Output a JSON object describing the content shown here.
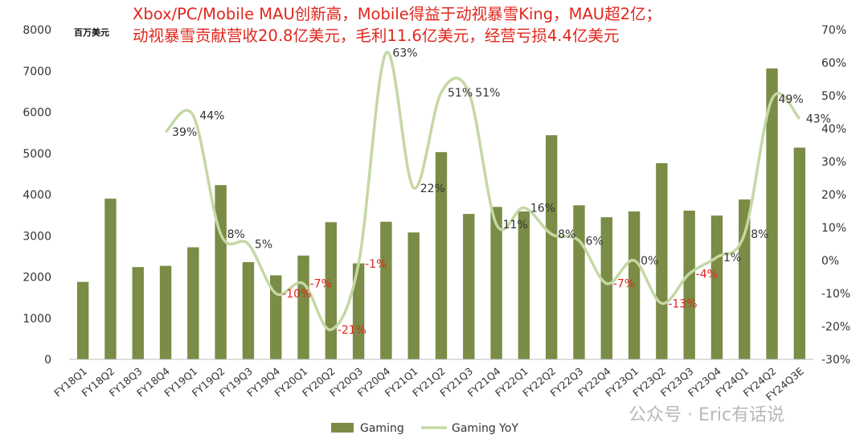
{
  "header": {
    "title_line1": "Xbox/PC/Mobile MAU创新高，Mobile得益于动视暴雪King，MAU超2亿；",
    "title_line2": "动视暴雪贡献营收20.8亿美元，毛利11.6亿美元，经营亏损4.4亿美元",
    "unit_label": "百万美元"
  },
  "watermark": "公众号 · Eric有话说",
  "colors": {
    "bar": "#7a8c45",
    "line": "#c5d8a4",
    "negative_label": "#e0261c",
    "title": "#e0261c"
  },
  "chart_data": {
    "type": "bar+line",
    "categories": [
      "FY18Q1",
      "FY18Q2",
      "FY18Q3",
      "FY18Q4",
      "FY19Q1",
      "FY19Q2",
      "FY19Q3",
      "FY19Q4",
      "FY20Q1",
      "FY20Q2",
      "FY20Q3",
      "FY20Q4",
      "FY21Q1",
      "FY21Q2",
      "FY21Q3",
      "FY21Q4",
      "FY22Q1",
      "FY22Q2",
      "FY22Q3",
      "FY22Q4",
      "FY23Q1",
      "FY23Q2",
      "FY23Q3",
      "FY23Q4",
      "FY24Q1",
      "FY24Q2",
      "FY24Q3E"
    ],
    "series": [
      {
        "name": "Gaming",
        "axis": "left",
        "values": [
          1880,
          3900,
          2240,
          2270,
          2720,
          4230,
          2360,
          2040,
          2520,
          3330,
          2330,
          3340,
          3080,
          5030,
          3530,
          3700,
          3590,
          5440,
          3740,
          3450,
          3590,
          4760,
          3610,
          3490,
          3880,
          7060,
          5140
        ]
      },
      {
        "name": "Gaming YoY",
        "axis": "right",
        "values": [
          null,
          null,
          null,
          39,
          44,
          8,
          5,
          -10,
          -7,
          -21,
          -1,
          63,
          22,
          51,
          51,
          11,
          16,
          8,
          6,
          -7,
          0,
          -13,
          -4,
          1,
          8,
          49,
          43
        ],
        "labels": [
          null,
          null,
          null,
          "39%",
          "44%",
          "8%",
          "5%",
          "-10%",
          "-7%",
          "-21%",
          "-1%",
          "63%",
          "22%",
          "51%",
          "51%",
          "11%",
          "16%",
          "8%",
          "6%",
          "-7%",
          "0%",
          "-13%",
          "-4%",
          "1%",
          "8%",
          "49%",
          "43%"
        ]
      }
    ],
    "y_left": {
      "min": 0,
      "max": 8000,
      "ticks": [
        "0",
        "1000",
        "2000",
        "3000",
        "4000",
        "5000",
        "6000",
        "7000",
        "8000"
      ]
    },
    "y_right": {
      "min": -30,
      "max": 70,
      "ticks": [
        "-30%",
        "-20%",
        "-10%",
        "0%",
        "10%",
        "20%",
        "30%",
        "40%",
        "50%",
        "60%",
        "70%"
      ]
    },
    "legend": {
      "position": "bottom",
      "entries": [
        "Gaming",
        "Gaming YoY"
      ]
    },
    "grid": false
  }
}
